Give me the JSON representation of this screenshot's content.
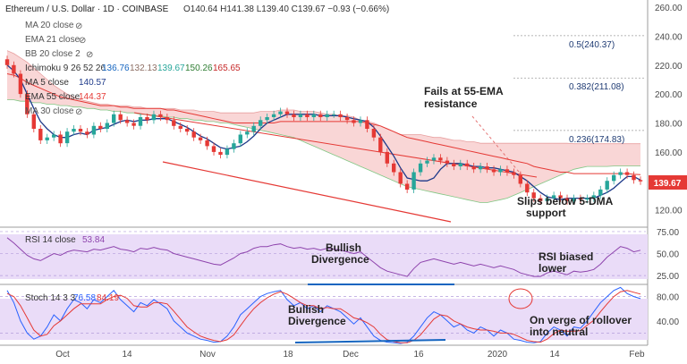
{
  "header": {
    "symbol": "Ethereum / U.S. Dollar · 1D · COINBASE",
    "ohlc": "O140.64  H141.38  L139.40  C139.67  −0.93 (−0.66%)"
  },
  "legend": {
    "ma20": "MA 20 close",
    "ema21": "EMA 21 close",
    "bb20": "BB 20 close 2",
    "ichimoku": "Ichimoku 9 26 52 26",
    "ichimoku_values": [
      "136.76",
      "132.13",
      "139.67",
      "150.26",
      "165.65"
    ],
    "ma5": "MA 5 close",
    "ma5_value": "140.57",
    "ema55": "EMA 55 close",
    "ema55_value": "144.37",
    "ma30": "MA 30 close",
    "rsi": "RSI 14 close",
    "rsi_value": "53.84",
    "stoch": "Stoch 14 3 3",
    "stoch_k": "76.58",
    "stoch_d": "84.19"
  },
  "annotations": {
    "fails_line1": "Fails at 55-EMA",
    "fails_line2": "resistance",
    "slips_line1": "Slips below 5-DMA",
    "slips_line2": "support",
    "bull_div_rsi_1": "Bullish",
    "bull_div_rsi_2": "Divergence",
    "rsi_bias_1": "RSI biased",
    "rsi_bias_2": "lower",
    "bull_div_stoch_1": "Bullish",
    "bull_div_stoch_2": "Divergence",
    "rollover_1": "On verge of rollover",
    "rollover_2": "into neutral"
  },
  "colors": {
    "up": "#26a69a",
    "down": "#e53935",
    "ma5": "#1e3a8a",
    "ema55": "#e53935",
    "cloud": "#f7c8c8",
    "cloud_green": "#c8e6c9",
    "rsi": "#8e44ad",
    "panel_bg": "#eadcf8",
    "stoch_k": "#2962ff",
    "stoch_d": "#e53935",
    "trend": "#e53935",
    "div": "#1565c0",
    "price_badge": "#e53935"
  },
  "chart_data": [
    {
      "type": "candlestick",
      "ylim": [
        108,
        265
      ],
      "y_ticks": [
        120,
        140,
        160,
        180,
        200,
        220,
        240,
        260
      ],
      "x_ticks": [
        "Oct",
        "14",
        "Nov",
        "18",
        "Dec",
        "16",
        "2020",
        "14",
        "Feb"
      ],
      "last_price": "139.67",
      "fib_levels": [
        {
          "label": "0.5(240.37)",
          "value": 240.37
        },
        {
          "label": "0.382(211.08)",
          "value": 211.08
        },
        {
          "label": "0.236(174.83)",
          "value": 174.83
        }
      ],
      "close": [
        220,
        214,
        200,
        186,
        176,
        168,
        170,
        172,
        166,
        174,
        176,
        174,
        172,
        178,
        176,
        180,
        186,
        182,
        180,
        178,
        184,
        182,
        186,
        184,
        182,
        178,
        176,
        174,
        170,
        168,
        164,
        160,
        158,
        162,
        166,
        172,
        174,
        178,
        182,
        184,
        186,
        188,
        186,
        184,
        186,
        184,
        186,
        184,
        186,
        186,
        184,
        182,
        180,
        182,
        176,
        170,
        160,
        152,
        146,
        138,
        134,
        146,
        152,
        154,
        156,
        154,
        152,
        150,
        152,
        150,
        148,
        150,
        148,
        146,
        148,
        146,
        144,
        138,
        132,
        128,
        126,
        128,
        130,
        128,
        126,
        128,
        127,
        128,
        130,
        134,
        140,
        144,
        146,
        144,
        140.57,
        139.67
      ],
      "ma5": [
        220,
        216,
        210,
        200,
        190,
        181,
        176,
        172,
        170,
        170,
        172,
        173,
        172,
        175,
        176,
        177,
        179,
        181,
        182,
        181,
        182,
        182,
        183,
        183,
        183,
        181,
        179,
        177,
        174,
        171,
        169,
        166,
        163,
        162,
        163,
        164,
        167,
        171,
        176,
        180,
        182,
        184,
        186,
        186,
        186,
        186,
        186,
        185,
        185,
        185,
        185,
        184,
        183,
        182,
        181,
        177,
        171,
        164,
        157,
        149,
        142,
        141,
        140,
        140,
        142,
        148,
        152,
        152,
        152,
        151,
        150,
        150,
        149,
        149,
        148,
        147,
        146,
        143,
        140,
        136,
        132,
        129,
        128,
        127,
        128,
        128,
        128,
        128,
        128,
        130,
        132,
        135,
        139,
        143,
        143,
        140.57
      ],
      "ema55": [
        214,
        213,
        211,
        208,
        206,
        204,
        202,
        200,
        198,
        197,
        196,
        195,
        194,
        193,
        192,
        192,
        192,
        191,
        191,
        190,
        190,
        190,
        190,
        190,
        189,
        189,
        188,
        187,
        186,
        185,
        184,
        183,
        182,
        181,
        180,
        180,
        180,
        180,
        180,
        180,
        180,
        181,
        181,
        181,
        181,
        181,
        181,
        181,
        181,
        181,
        181,
        181,
        181,
        181,
        180,
        179,
        178,
        176,
        174,
        172,
        170,
        169,
        168,
        167,
        166,
        165,
        164,
        163,
        162,
        161,
        160,
        159,
        158,
        157,
        156,
        155,
        154,
        153,
        152,
        150,
        149,
        148,
        147,
        146,
        146,
        145,
        145,
        145,
        145,
        145,
        145,
        145,
        145,
        145,
        144.5,
        144.37
      ],
      "cloud_top": [
        230,
        228,
        225,
        222,
        218,
        214,
        210,
        206,
        203,
        200,
        198,
        196,
        195,
        194,
        193,
        193,
        192,
        192,
        192,
        191,
        191,
        190,
        190,
        190,
        190,
        190,
        189,
        189,
        189,
        188,
        188,
        188,
        187,
        187,
        187,
        187,
        187,
        187,
        188,
        188,
        188,
        189,
        189,
        189,
        188,
        188,
        188,
        187,
        186,
        186,
        185,
        185,
        184,
        182,
        181,
        180,
        178,
        176,
        174,
        172,
        172,
        172,
        172,
        171,
        170,
        170,
        169,
        168,
        168,
        167,
        167,
        166,
        166,
        166,
        166,
        166,
        166,
        166,
        166,
        166,
        166,
        166,
        166,
        166,
        166,
        165.65,
        165.65,
        165.65,
        165.65,
        165.65,
        165.65,
        165.65,
        165.65,
        165.65,
        165.65,
        165.65
      ],
      "cloud_bottom": [
        196,
        196,
        195,
        195,
        194,
        194,
        193,
        193,
        192,
        192,
        191,
        191,
        190,
        190,
        189,
        189,
        188,
        188,
        187,
        187,
        186,
        186,
        185,
        185,
        184,
        184,
        183,
        183,
        182,
        182,
        181,
        181,
        180,
        180,
        179,
        178,
        177,
        176,
        175,
        174,
        173,
        172,
        171,
        170,
        168,
        166,
        164,
        162,
        160,
        158,
        156,
        154,
        152,
        150,
        148,
        146,
        144,
        142,
        140,
        138,
        136,
        135,
        134,
        133,
        132,
        131,
        130,
        129,
        128,
        127,
        126,
        125,
        125,
        126,
        127,
        128,
        130,
        132,
        134,
        136,
        138,
        140,
        142,
        144,
        146,
        148,
        149,
        150,
        150,
        150,
        150,
        150.26,
        150.26,
        150.26,
        150.26,
        150.26
      ]
    },
    {
      "type": "line",
      "name": "RSI 14",
      "ylim": [
        15,
        80
      ],
      "y_ticks": [
        25,
        50,
        75
      ],
      "values": [
        68,
        62,
        55,
        48,
        44,
        42,
        46,
        50,
        48,
        52,
        54,
        53,
        52,
        55,
        54,
        56,
        58,
        55,
        54,
        52,
        56,
        55,
        57,
        55,
        54,
        50,
        48,
        46,
        44,
        42,
        40,
        38,
        37,
        41,
        45,
        50,
        52,
        56,
        58,
        58,
        60,
        61,
        58,
        56,
        57,
        55,
        56,
        54,
        56,
        55,
        54,
        52,
        50,
        52,
        46,
        40,
        34,
        30,
        28,
        26,
        24,
        33,
        40,
        42,
        44,
        42,
        40,
        38,
        40,
        38,
        36,
        38,
        36,
        34,
        36,
        34,
        32,
        28,
        26,
        24,
        24,
        28,
        30,
        28,
        26,
        30,
        29,
        30,
        32,
        38,
        46,
        52,
        58,
        56,
        52,
        53.84
      ]
    },
    {
      "type": "line",
      "name": "Stoch 14 3 3",
      "ylim": [
        0,
        100
      ],
      "y_ticks": [
        40,
        80
      ],
      "k": [
        90,
        70,
        40,
        20,
        10,
        15,
        30,
        50,
        40,
        60,
        75,
        70,
        60,
        75,
        70,
        80,
        90,
        75,
        65,
        55,
        70,
        65,
        75,
        68,
        60,
        40,
        30,
        20,
        15,
        10,
        8,
        5,
        6,
        15,
        30,
        50,
        60,
        70,
        80,
        85,
        88,
        90,
        75,
        65,
        70,
        60,
        65,
        55,
        65,
        60,
        55,
        45,
        35,
        45,
        30,
        15,
        8,
        5,
        4,
        3,
        5,
        15,
        30,
        45,
        55,
        50,
        40,
        30,
        35,
        25,
        20,
        30,
        25,
        15,
        25,
        20,
        10,
        8,
        5,
        4,
        6,
        20,
        30,
        25,
        15,
        30,
        28,
        40,
        55,
        70,
        80,
        90,
        95,
        85,
        80,
        76.58
      ],
      "d": [
        85,
        80,
        65,
        45,
        25,
        15,
        18,
        32,
        40,
        50,
        60,
        68,
        68,
        68,
        68,
        75,
        80,
        82,
        77,
        65,
        63,
        63,
        70,
        70,
        68,
        56,
        43,
        30,
        22,
        15,
        11,
        8,
        6,
        9,
        17,
        32,
        47,
        60,
        70,
        78,
        84,
        88,
        84,
        77,
        70,
        65,
        65,
        60,
        62,
        60,
        60,
        53,
        45,
        42,
        37,
        30,
        18,
        9,
        6,
        4,
        4,
        8,
        17,
        30,
        43,
        50,
        48,
        40,
        35,
        30,
        27,
        25,
        25,
        23,
        20,
        20,
        18,
        13,
        8,
        6,
        5,
        10,
        19,
        25,
        23,
        23,
        24,
        33,
        41,
        55,
        68,
        80,
        88,
        90,
        87,
        84.19
      ]
    }
  ]
}
